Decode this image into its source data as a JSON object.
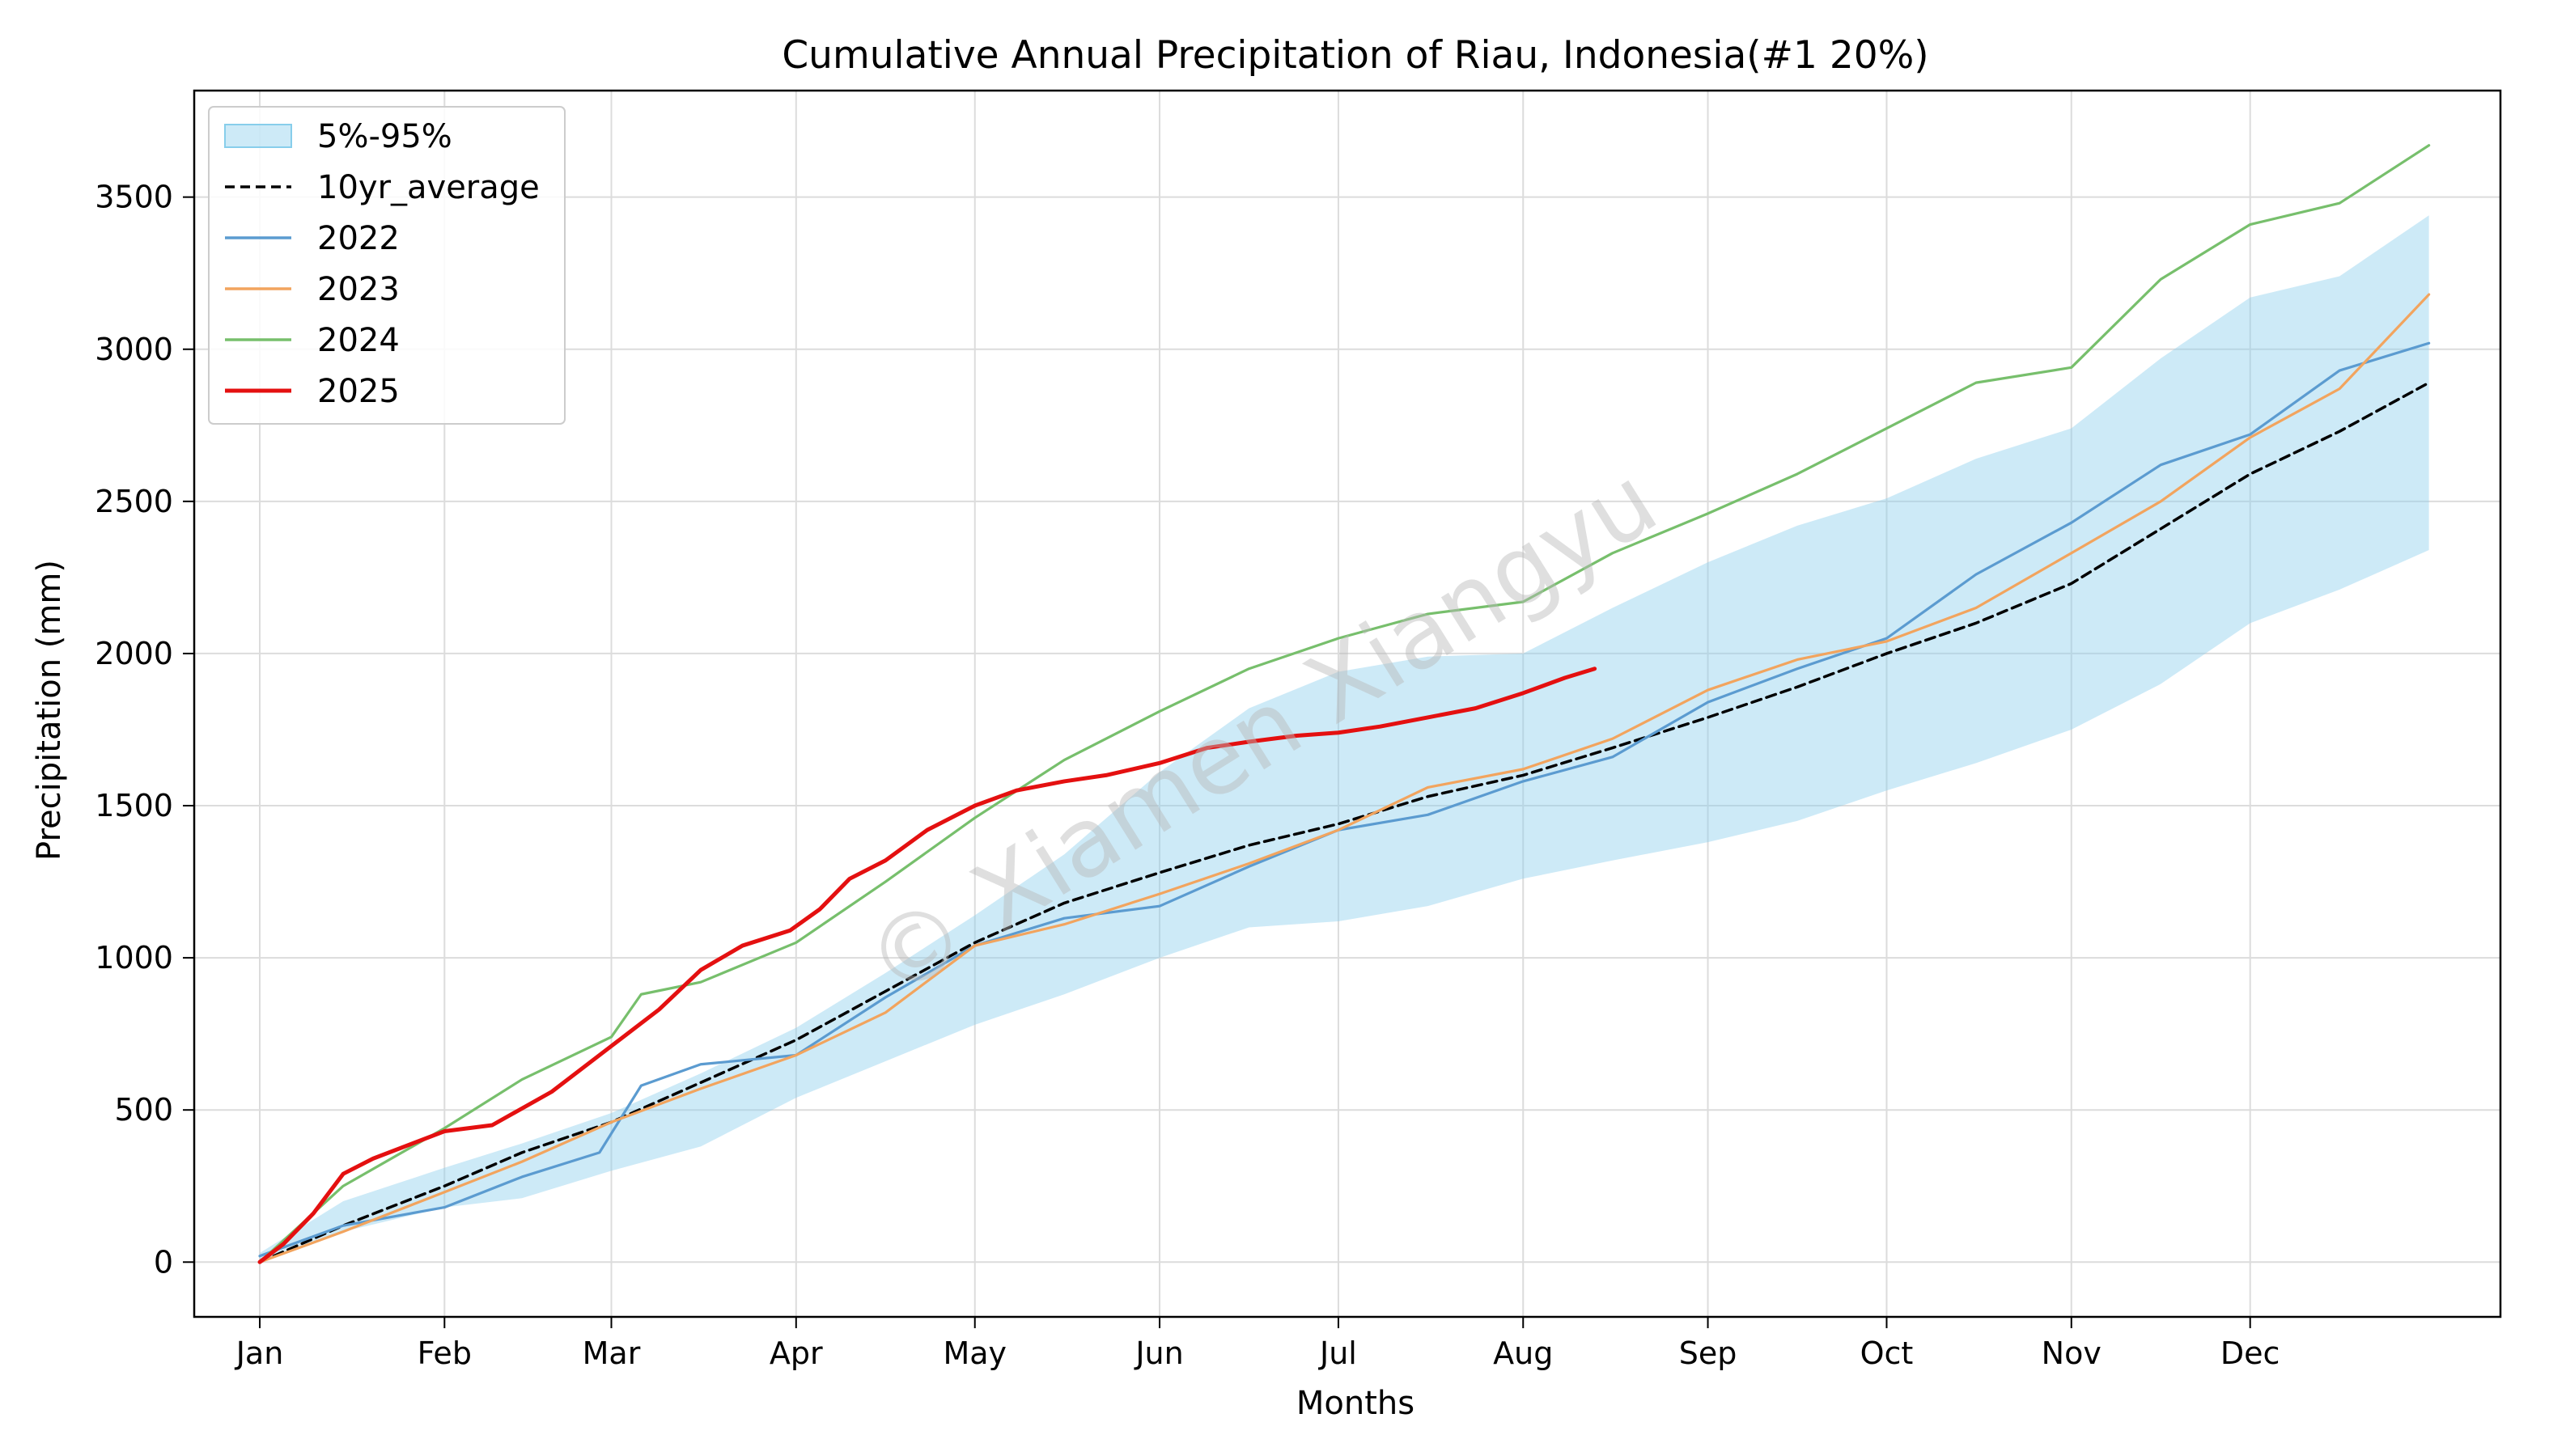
{
  "chart_data": {
    "type": "line",
    "title": "Cumulative Annual Precipitation of Riau, Indonesia(#1 20%)",
    "xlabel": "Months",
    "ylabel": "Precipitation (mm)",
    "x_categories": [
      "Jan",
      "Feb",
      "Mar",
      "Apr",
      "May",
      "Jun",
      "Jul",
      "Aug",
      "Sep",
      "Oct",
      "Nov",
      "Dec"
    ],
    "x_unit": "day_of_year",
    "month_start_days": [
      1,
      32,
      60,
      91,
      121,
      152,
      182,
      213,
      244,
      274,
      305,
      335
    ],
    "xlim": [
      -10,
      377
    ],
    "ylim": [
      -180,
      3850
    ],
    "yticks": [
      0,
      500,
      1000,
      1500,
      2000,
      2500,
      3000,
      3500
    ],
    "grid": true,
    "legend_position": "upper left",
    "watermark": "© Xiamen Xiangyu",
    "band": {
      "name": "5%-95%",
      "color": "#87ceeb",
      "x": [
        1,
        15,
        32,
        45,
        60,
        75,
        91,
        106,
        121,
        136,
        152,
        167,
        182,
        197,
        213,
        228,
        244,
        259,
        274,
        289,
        305,
        320,
        335,
        350,
        365
      ],
      "lower": [
        0,
        100,
        180,
        210,
        300,
        380,
        540,
        660,
        780,
        880,
        1000,
        1100,
        1120,
        1170,
        1260,
        1320,
        1380,
        1450,
        1550,
        1640,
        1750,
        1900,
        2100,
        2210,
        2340
      ],
      "upper": [
        30,
        200,
        310,
        390,
        490,
        620,
        770,
        950,
        1140,
        1340,
        1610,
        1820,
        1940,
        1990,
        2000,
        2150,
        2300,
        2420,
        2510,
        2640,
        2740,
        2970,
        3170,
        3240,
        3440
      ]
    },
    "series": [
      {
        "name": "10yr_average",
        "color": "#000000",
        "style": "dashed",
        "x": [
          1,
          15,
          32,
          45,
          60,
          75,
          91,
          106,
          121,
          136,
          152,
          167,
          182,
          197,
          213,
          228,
          244,
          259,
          274,
          289,
          305,
          320,
          335,
          350,
          365
        ],
        "y": [
          0,
          120,
          250,
          360,
          460,
          590,
          730,
          890,
          1050,
          1180,
          1280,
          1370,
          1440,
          1530,
          1600,
          1690,
          1790,
          1890,
          2000,
          2100,
          2230,
          2410,
          2590,
          2730,
          2890
        ]
      },
      {
        "name": "2022",
        "color": "#5b9bd0",
        "style": "solid",
        "x": [
          1,
          15,
          32,
          45,
          58,
          65,
          75,
          91,
          106,
          121,
          136,
          152,
          167,
          182,
          197,
          213,
          228,
          244,
          259,
          274,
          289,
          305,
          320,
          335,
          350,
          365
        ],
        "y": [
          20,
          120,
          180,
          280,
          360,
          580,
          650,
          680,
          870,
          1040,
          1130,
          1170,
          1300,
          1420,
          1470,
          1580,
          1660,
          1840,
          1950,
          2050,
          2260,
          2430,
          2620,
          2720,
          2930,
          3020
        ]
      },
      {
        "name": "2023",
        "color": "#f2a45e",
        "style": "solid",
        "x": [
          1,
          15,
          32,
          45,
          60,
          75,
          91,
          106,
          121,
          136,
          152,
          167,
          182,
          197,
          213,
          228,
          244,
          259,
          274,
          289,
          305,
          320,
          335,
          350,
          365
        ],
        "y": [
          0,
          100,
          230,
          330,
          460,
          570,
          680,
          820,
          1040,
          1110,
          1210,
          1310,
          1420,
          1560,
          1620,
          1720,
          1880,
          1980,
          2040,
          2150,
          2330,
          2500,
          2710,
          2870,
          3180
        ]
      },
      {
        "name": "2024",
        "color": "#77bf6c",
        "style": "solid",
        "x": [
          1,
          15,
          32,
          45,
          60,
          65,
          75,
          91,
          106,
          121,
          136,
          152,
          167,
          182,
          197,
          213,
          228,
          244,
          259,
          274,
          289,
          305,
          320,
          335,
          350,
          365
        ],
        "y": [
          0,
          250,
          440,
          600,
          740,
          880,
          920,
          1050,
          1250,
          1460,
          1650,
          1810,
          1950,
          2050,
          2130,
          2170,
          2330,
          2460,
          2590,
          2740,
          2890,
          2940,
          3230,
          3410,
          3480,
          3670
        ]
      },
      {
        "name": "2025",
        "color": "#e41010",
        "style": "solid",
        "x": [
          1,
          5,
          10,
          15,
          20,
          32,
          40,
          50,
          60,
          68,
          75,
          82,
          90,
          95,
          100,
          106,
          113,
          121,
          128,
          136,
          143,
          152,
          160,
          167,
          175,
          182,
          189,
          197,
          205,
          213,
          220,
          225
        ],
        "y": [
          0,
          60,
          160,
          290,
          340,
          430,
          450,
          560,
          710,
          830,
          960,
          1040,
          1090,
          1160,
          1260,
          1320,
          1420,
          1500,
          1550,
          1580,
          1600,
          1640,
          1690,
          1710,
          1730,
          1740,
          1760,
          1790,
          1820,
          1870,
          1920,
          1950
        ]
      }
    ]
  }
}
